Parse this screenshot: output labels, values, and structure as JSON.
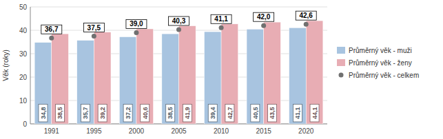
{
  "chart_data": {
    "type": "bar",
    "ylabel": "Věk (roky)",
    "categories": [
      "1991",
      "1995",
      "2000",
      "2005",
      "2010",
      "2015",
      "2020"
    ],
    "series": [
      {
        "name": "Průměrný věk - muži",
        "type": "bar",
        "color": "#a8c4e0",
        "values": [
          34.8,
          35.7,
          37.2,
          38.5,
          39.4,
          40.5,
          41.1
        ],
        "value_labels": [
          "34,8",
          "35,7",
          "37,2",
          "38,5",
          "39,4",
          "40,5",
          "41,1"
        ]
      },
      {
        "name": "Průměrný věk - ženy",
        "type": "bar",
        "color": "#e8adb4",
        "values": [
          38.5,
          39.2,
          40.6,
          41.9,
          42.7,
          43.5,
          44.1
        ],
        "value_labels": [
          "38,5",
          "39,2",
          "40,6",
          "41,9",
          "42,7",
          "43,5",
          "44,1"
        ]
      },
      {
        "name": "Průměrný věk - celkem",
        "type": "scatter",
        "marker": "circle",
        "color": "#707070",
        "values": [
          36.7,
          37.5,
          39.0,
          40.3,
          41.1,
          42.0,
          42.6
        ],
        "value_labels": [
          "36,7",
          "37,5",
          "39,0",
          "40,3",
          "41,1",
          "42,0",
          "42,6"
        ]
      }
    ],
    "ylim": [
      0,
      50
    ],
    "yticks": [
      0,
      10,
      20,
      30,
      40,
      50
    ],
    "grid": true,
    "legend": "right",
    "data_labels": true
  }
}
